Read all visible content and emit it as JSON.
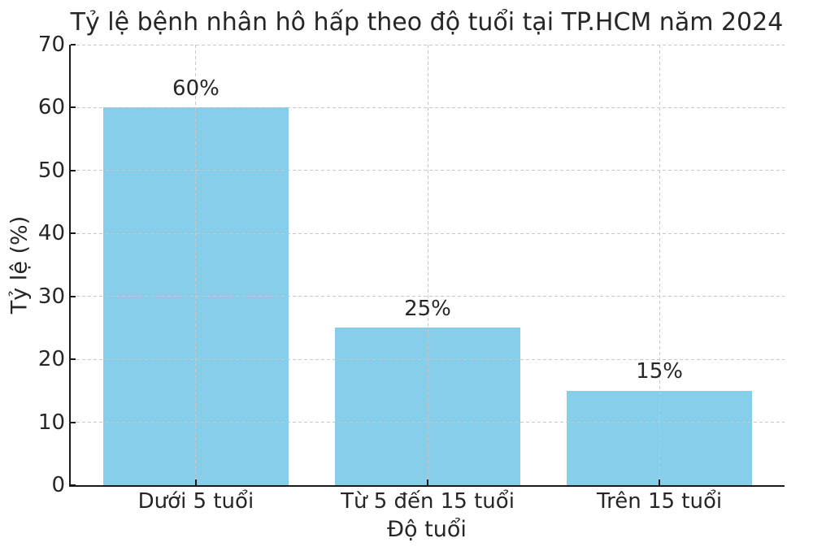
{
  "figure": {
    "background": "#ffffff"
  },
  "chart_data": {
    "type": "bar",
    "title": "Tỷ lệ bệnh nhân hô hấp theo độ tuổi tại TP.HCM năm 2024",
    "xlabel": "Độ tuổi",
    "ylabel": "Tỷ lệ (%)",
    "categories": [
      "Dưới 5 tuổi",
      "Từ 5 đến 15 tuổi",
      "Trên 15 tuổi"
    ],
    "values": [
      60,
      25,
      15
    ],
    "bar_labels": [
      "60%",
      "25%",
      "15%"
    ],
    "yticks": [
      0,
      10,
      20,
      30,
      40,
      50,
      60,
      70
    ],
    "ylim": [
      0,
      70
    ],
    "grid": true,
    "grid_style": "dashed",
    "legend_position": "none",
    "bar_color": "#87CEEB",
    "grid_color": "#c8c8c8",
    "axis_color": "#1a1a1a",
    "text_color": "#262626"
  }
}
